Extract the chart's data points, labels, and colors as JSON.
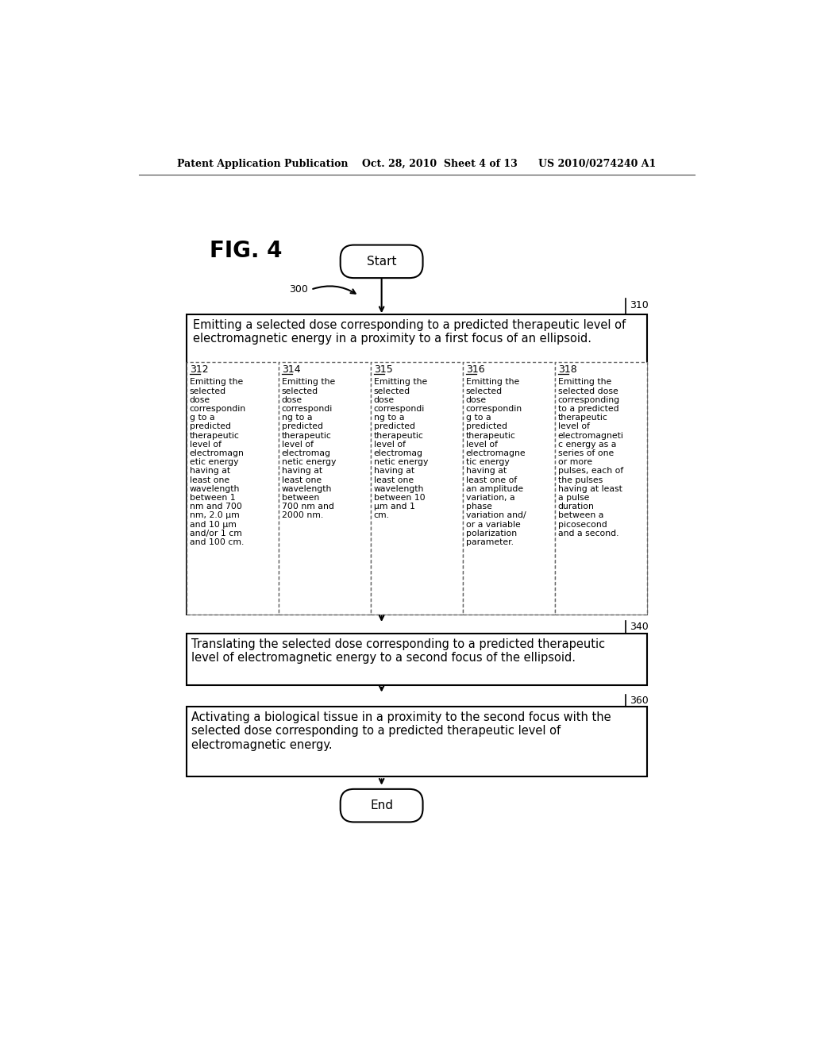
{
  "bg_color": "#ffffff",
  "header_text": "Patent Application Publication    Oct. 28, 2010  Sheet 4 of 13      US 2010/0274240 A1",
  "fig_label": "FIG. 4",
  "start_label": "Start",
  "end_label": "End",
  "ref_300": "300",
  "ref_310": "310",
  "ref_340": "340",
  "ref_360": "360",
  "box310_text": "Emitting a selected dose corresponding to a predicted therapeutic level of\nelectromagnetic energy in a proximity to a first focus of an ellipsoid.",
  "box340_text": "Translating the selected dose corresponding to a predicted therapeutic\nlevel of electromagnetic energy to a second focus of the ellipsoid.",
  "box360_text": "Activating a biological tissue in a proximity to the second focus with the\nselected dose corresponding to a predicted therapeutic level of\nelectromagnetic energy.",
  "sub_refs": [
    "312",
    "314",
    "315",
    "316",
    "318"
  ],
  "sub_texts_wrapped": [
    "Emitting the\nselected\ndose\ncorrespondin\ng to a\npredicted\ntherapeutic\nlevel of\nelectromagn\netic energy\nhaving at\nleast one\nwavelength\nbetween 1\nnm and 700\nnm, 2.0 μm\nand 10 μm\nand/or 1 cm\nand 100 cm.",
    "Emitting the\nselected\ndose\ncorrespondi\nng to a\npredicted\ntherapeutic\nlevel of\nelectromag\nnetic energy\nhaving at\nleast one\nwavelength\nbetween\n700 nm and\n2000 nm.",
    "Emitting the\nselected\ndose\ncorrespondi\nng to a\npredicted\ntherapeutic\nlevel of\nelectromag\nnetic energy\nhaving at\nleast one\nwavelength\nbetween 10\nμm and 1\ncm.",
    "Emitting the\nselected\ndose\ncorrespondin\ng to a\npredicted\ntherapeutic\nlevel of\nelectromagne\ntic energy\nhaving at\nleast one of\nan amplitude\nvariation, a\nphase\nvariation and/\nor a variable\npolarization\nparameter.",
    "Emitting the\nselected dose\ncorresponding\nto a predicted\ntherapeutic\nlevel of\nelectromagneti\nc energy as a\nseries of one\nor more\npulses, each of\nthe pulses\nhaving at least\na pulse\nduration\nbetween a\npicosecond\nand a second."
  ],
  "font_color": "#000000",
  "box_edge_color": "#000000",
  "dashed_edge_color": "#666666"
}
